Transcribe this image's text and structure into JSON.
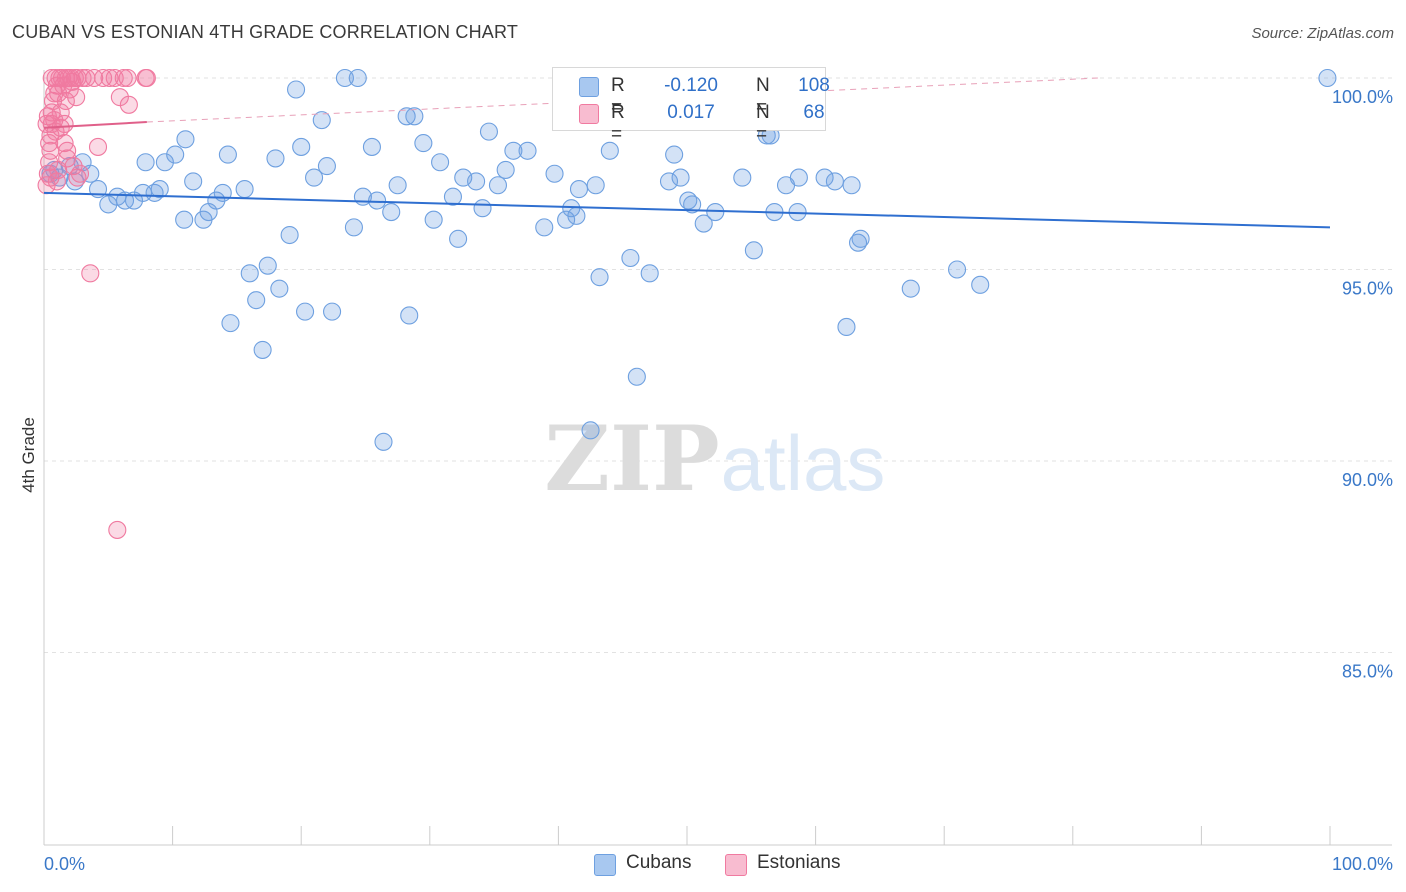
{
  "title": "CUBAN VS ESTONIAN 4TH GRADE CORRELATION CHART",
  "source": "Source: ZipAtlas.com",
  "watermark": {
    "zip": "ZIP",
    "atlas": "atlas"
  },
  "legend": {
    "rows": [
      {
        "label_r": "R =",
        "r": "-0.120",
        "label_n": "N =",
        "n": "108",
        "color": "#a8c8f0",
        "border": "#6ea0e0"
      },
      {
        "label_r": "R =",
        "r": "0.017",
        "label_n": "N =",
        "n": "68",
        "color": "#f8bcd0",
        "border": "#f07aa0"
      }
    ]
  },
  "bottom_legend": [
    {
      "label": "Cubans",
      "color": "#a8c8f0",
      "border": "#6ea0e0"
    },
    {
      "label": "Estonians",
      "color": "#f8bcd0",
      "border": "#f07aa0"
    }
  ],
  "chart_data": {
    "type": "scatter",
    "title": "CUBAN VS ESTONIAN 4TH GRADE CORRELATION CHART",
    "ylabel": "4th Grade",
    "xlabel": "",
    "xlim": [
      0,
      100
    ],
    "ylim": [
      80.5,
      100.5
    ],
    "x_tick_labels": [
      {
        "value": 0,
        "label": "0.0%"
      },
      {
        "value": 100,
        "label": "100.0%"
      }
    ],
    "y_tick_labels": [
      {
        "value": 100,
        "label": "100.0%"
      },
      {
        "value": 95,
        "label": "95.0%"
      },
      {
        "value": 90,
        "label": "90.0%"
      },
      {
        "value": 85,
        "label": "85.0%"
      }
    ],
    "grid": true,
    "series": [
      {
        "name": "Cubans",
        "fill": "rgba(110,160,224,0.30)",
        "stroke": "#6ea0e0",
        "trend": {
          "x": [
            0,
            100
          ],
          "y": [
            97.0,
            96.1
          ],
          "color": "#2f6fd0",
          "style": "solid"
        },
        "points": [
          [
            0.5,
            97.5
          ],
          [
            0.8,
            97.6
          ],
          [
            1.2,
            97.4
          ],
          [
            2.0,
            97.7
          ],
          [
            2.4,
            97.3
          ],
          [
            3.0,
            97.8
          ],
          [
            3.6,
            97.5
          ],
          [
            4.2,
            97.1
          ],
          [
            5.0,
            96.7
          ],
          [
            5.7,
            96.9
          ],
          [
            6.3,
            96.8
          ],
          [
            7.0,
            96.8
          ],
          [
            7.7,
            97.0
          ],
          [
            8.6,
            97.0
          ],
          [
            9.0,
            97.1
          ],
          [
            7.9,
            97.8
          ],
          [
            9.4,
            97.8
          ],
          [
            10.2,
            98.0
          ],
          [
            11.0,
            98.4
          ],
          [
            10.9,
            96.3
          ],
          [
            11.6,
            97.3
          ],
          [
            12.4,
            96.3
          ],
          [
            12.8,
            96.5
          ],
          [
            13.4,
            96.8
          ],
          [
            13.9,
            97.0
          ],
          [
            14.3,
            98.0
          ],
          [
            14.5,
            93.6
          ],
          [
            15.6,
            97.1
          ],
          [
            16.0,
            94.9
          ],
          [
            16.5,
            94.2
          ],
          [
            17.0,
            92.9
          ],
          [
            17.4,
            95.1
          ],
          [
            18.0,
            97.9
          ],
          [
            18.3,
            94.5
          ],
          [
            19.1,
            95.9
          ],
          [
            19.6,
            99.7
          ],
          [
            20.0,
            98.2
          ],
          [
            20.3,
            93.9
          ],
          [
            21.0,
            97.4
          ],
          [
            21.6,
            98.9
          ],
          [
            22.0,
            97.7
          ],
          [
            22.4,
            93.9
          ],
          [
            23.4,
            100.0
          ],
          [
            24.1,
            96.1
          ],
          [
            24.4,
            100.0
          ],
          [
            24.8,
            96.9
          ],
          [
            25.5,
            98.2
          ],
          [
            25.9,
            96.8
          ],
          [
            26.4,
            90.5
          ],
          [
            27.0,
            96.5
          ],
          [
            27.5,
            97.2
          ],
          [
            28.2,
            99.0
          ],
          [
            28.4,
            93.8
          ],
          [
            28.8,
            99.0
          ],
          [
            29.5,
            98.3
          ],
          [
            30.3,
            96.3
          ],
          [
            30.8,
            97.8
          ],
          [
            31.8,
            96.9
          ],
          [
            32.2,
            95.8
          ],
          [
            32.6,
            97.4
          ],
          [
            33.6,
            97.3
          ],
          [
            34.1,
            96.6
          ],
          [
            34.6,
            98.6
          ],
          [
            35.3,
            97.2
          ],
          [
            35.9,
            97.6
          ],
          [
            36.5,
            98.1
          ],
          [
            37.6,
            98.1
          ],
          [
            38.9,
            96.1
          ],
          [
            39.7,
            97.5
          ],
          [
            40.6,
            96.3
          ],
          [
            41.0,
            96.6
          ],
          [
            41.4,
            96.4
          ],
          [
            41.6,
            97.1
          ],
          [
            42.5,
            90.8
          ],
          [
            42.9,
            97.2
          ],
          [
            43.2,
            94.8
          ],
          [
            44.0,
            98.1
          ],
          [
            45.6,
            95.3
          ],
          [
            46.1,
            92.2
          ],
          [
            47.1,
            94.9
          ],
          [
            48.6,
            97.3
          ],
          [
            49.0,
            98.0
          ],
          [
            49.5,
            97.4
          ],
          [
            50.1,
            96.8
          ],
          [
            50.4,
            96.7
          ],
          [
            51.3,
            96.2
          ],
          [
            52.2,
            96.5
          ],
          [
            54.3,
            97.4
          ],
          [
            55.2,
            95.5
          ],
          [
            56.2,
            98.5
          ],
          [
            56.5,
            98.5
          ],
          [
            56.8,
            96.5
          ],
          [
            57.7,
            97.2
          ],
          [
            58.6,
            96.5
          ],
          [
            58.7,
            97.4
          ],
          [
            60.7,
            97.4
          ],
          [
            61.5,
            97.3
          ],
          [
            62.4,
            93.5
          ],
          [
            62.8,
            97.2
          ],
          [
            63.3,
            95.7
          ],
          [
            63.5,
            95.8
          ],
          [
            67.4,
            94.5
          ],
          [
            71.0,
            95.0
          ],
          [
            72.8,
            94.6
          ],
          [
            99.8,
            100.0
          ]
        ]
      },
      {
        "name": "Estonians",
        "fill": "rgba(240,122,160,0.28)",
        "stroke": "#f07aa0",
        "trend": {
          "x": [
            0,
            8.0
          ],
          "y": [
            98.7,
            98.85
          ],
          "color": "#e0608a",
          "style": "solid",
          "dashed_x": [
            8.0,
            82.0
          ],
          "dashed_y": [
            98.85,
            100.0
          ]
        },
        "points": [
          [
            0.2,
            97.2
          ],
          [
            0.3,
            97.5
          ],
          [
            0.4,
            97.8
          ],
          [
            0.5,
            98.1
          ],
          [
            0.5,
            98.5
          ],
          [
            0.6,
            98.8
          ],
          [
            0.6,
            99.1
          ],
          [
            0.7,
            99.4
          ],
          [
            0.8,
            98.9
          ],
          [
            0.8,
            99.6
          ],
          [
            0.9,
            100.0
          ],
          [
            1.0,
            99.8
          ],
          [
            1.1,
            99.6
          ],
          [
            1.1,
            97.6
          ],
          [
            1.2,
            100.0
          ],
          [
            1.3,
            98.7
          ],
          [
            1.4,
            100.0
          ],
          [
            1.5,
            99.8
          ],
          [
            1.6,
            98.3
          ],
          [
            1.7,
            100.0
          ],
          [
            1.8,
            97.9
          ],
          [
            1.9,
            100.0
          ],
          [
            2.0,
            99.7
          ],
          [
            2.1,
            100.0
          ],
          [
            2.2,
            99.9
          ],
          [
            2.3,
            97.7
          ],
          [
            2.4,
            100.0
          ],
          [
            2.5,
            99.5
          ],
          [
            2.6,
            100.0
          ],
          [
            2.8,
            97.5
          ],
          [
            3.0,
            100.0
          ],
          [
            3.3,
            100.0
          ],
          [
            3.6,
            94.9
          ],
          [
            3.9,
            100.0
          ],
          [
            4.2,
            98.2
          ],
          [
            4.6,
            100.0
          ],
          [
            5.1,
            100.0
          ],
          [
            5.5,
            100.0
          ],
          [
            5.7,
            88.2
          ],
          [
            5.9,
            99.5
          ],
          [
            6.2,
            100.0
          ],
          [
            6.5,
            100.0
          ],
          [
            7.9,
            100.0
          ],
          [
            8.0,
            100.0
          ],
          [
            0.3,
            99.0
          ],
          [
            0.4,
            98.3
          ],
          [
            1.6,
            98.8
          ],
          [
            0.9,
            98.6
          ],
          [
            1.3,
            99.1
          ],
          [
            0.5,
            97.4
          ],
          [
            1.0,
            97.3
          ],
          [
            1.8,
            98.1
          ],
          [
            2.6,
            97.4
          ],
          [
            6.6,
            99.3
          ],
          [
            0.2,
            98.8
          ],
          [
            0.6,
            100.0
          ],
          [
            1.7,
            99.4
          ]
        ]
      }
    ]
  }
}
